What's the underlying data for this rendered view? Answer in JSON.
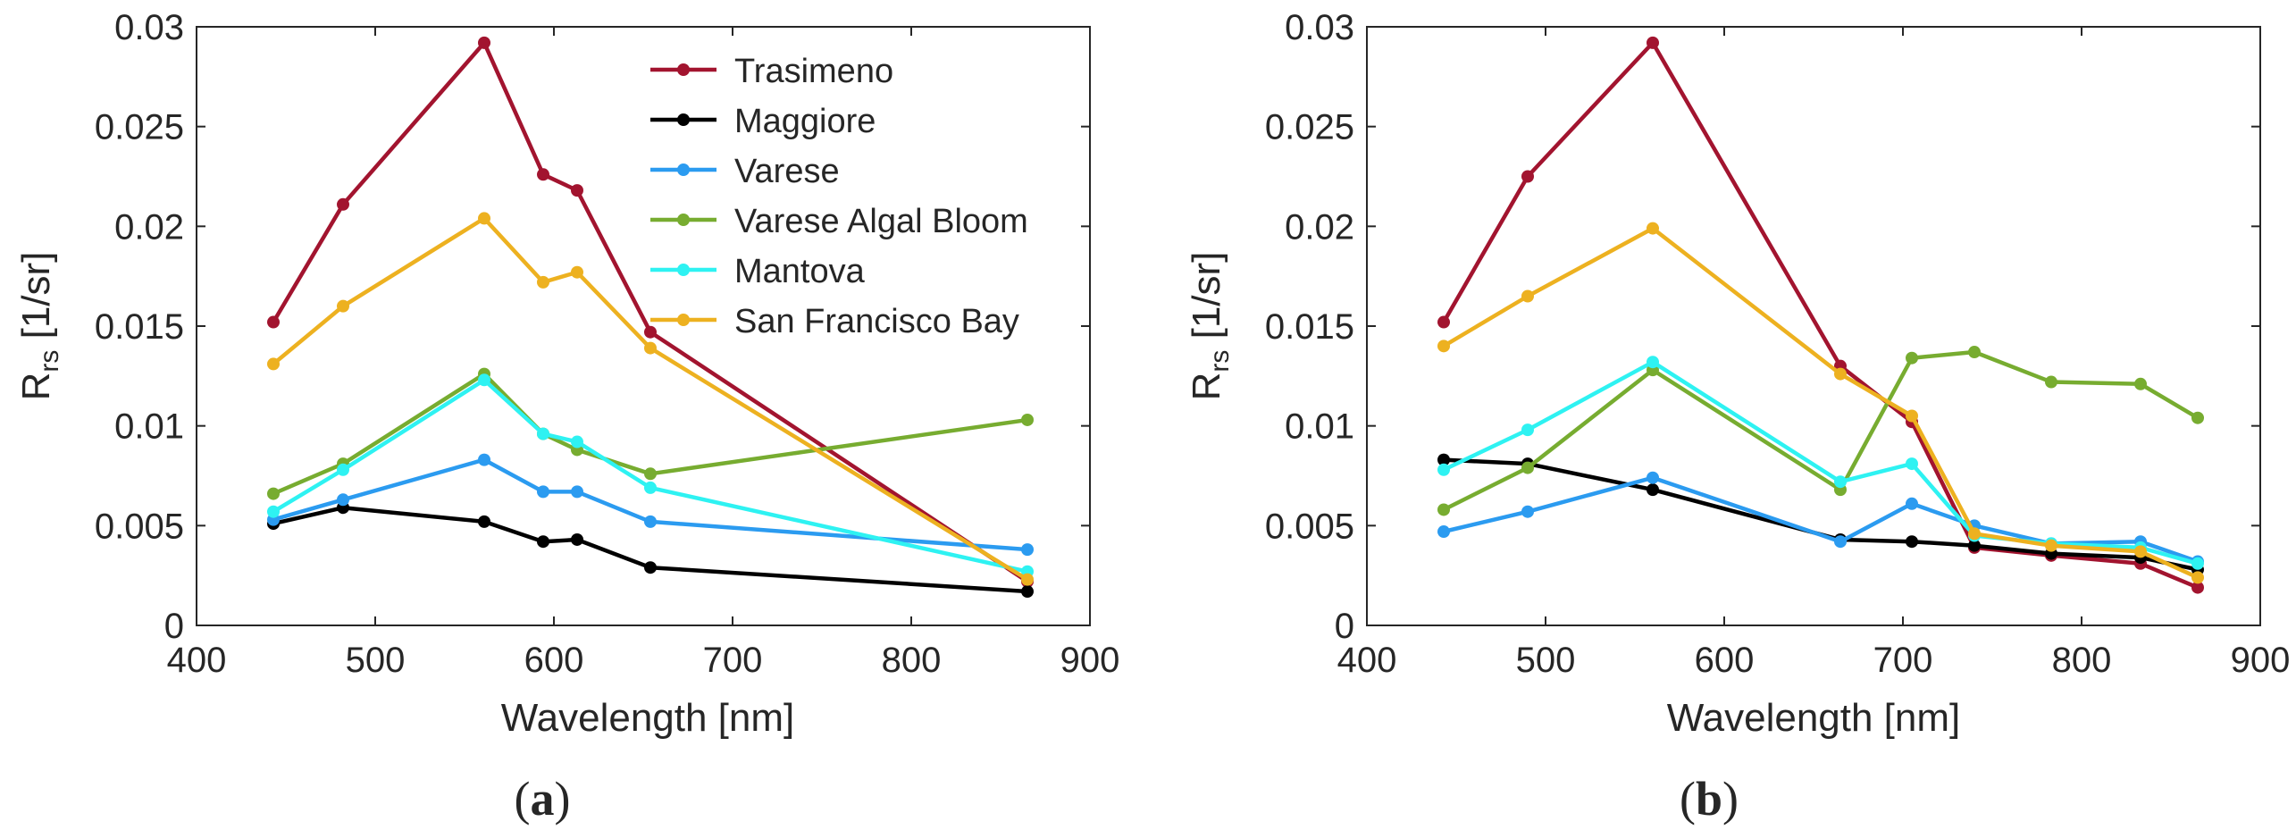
{
  "panels": [
    {
      "caption_open": "(",
      "caption_letter": "a",
      "caption_close": ")"
    },
    {
      "caption_open": "(",
      "caption_letter": "b",
      "caption_close": ")"
    }
  ],
  "chart_data": [
    {
      "type": "line",
      "title": "",
      "xlabel": "Wavelength [nm]",
      "ylabel_main": "R",
      "ylabel_sub": "rs",
      "ylabel_unit": " [1/sr]",
      "xlim": [
        400,
        900
      ],
      "ylim": [
        0,
        0.03
      ],
      "xticks": [
        400,
        500,
        600,
        700,
        800,
        900
      ],
      "yticks": [
        0,
        0.005,
        0.01,
        0.015,
        0.02,
        0.025,
        0.03
      ],
      "ytick_labels": [
        "0",
        "0.005",
        "0.01",
        "0.015",
        "0.02",
        "0.025",
        "0.03"
      ],
      "grid": false,
      "legend": "top-right",
      "series": [
        {
          "name": "Trasimeno",
          "color": "#A2142F",
          "x": [
            443,
            482,
            561,
            594,
            613,
            654,
            865
          ],
          "values": [
            0.0152,
            0.0211,
            0.0292,
            0.0226,
            0.0218,
            0.0147,
            0.0022
          ]
        },
        {
          "name": "Maggiore",
          "color": "#000000",
          "x": [
            443,
            482,
            561,
            594,
            613,
            654,
            865
          ],
          "values": [
            0.0051,
            0.0059,
            0.0052,
            0.0042,
            0.0043,
            0.0029,
            0.0017
          ]
        },
        {
          "name": "Varese",
          "color": "#2B9BF0",
          "x": [
            443,
            482,
            561,
            594,
            613,
            654,
            865
          ],
          "values": [
            0.0053,
            0.0063,
            0.0083,
            0.0067,
            0.0067,
            0.0052,
            0.0038
          ]
        },
        {
          "name": "Varese Algal Bloom",
          "color": "#77AC30",
          "x": [
            443,
            482,
            561,
            594,
            613,
            654,
            865
          ],
          "values": [
            0.0066,
            0.0081,
            0.0126,
            0.0096,
            0.0088,
            0.0076,
            0.0103
          ]
        },
        {
          "name": "Mantova",
          "color": "#2EF2F2",
          "x": [
            443,
            482,
            561,
            594,
            613,
            654,
            865
          ],
          "values": [
            0.0057,
            0.0078,
            0.0123,
            0.0096,
            0.0092,
            0.0069,
            0.0027
          ]
        },
        {
          "name": "San Francisco Bay",
          "color": "#EDB120",
          "x": [
            443,
            482,
            561,
            594,
            613,
            654,
            865
          ],
          "values": [
            0.0131,
            0.016,
            0.0204,
            0.0172,
            0.0177,
            0.0139,
            0.0023
          ]
        }
      ]
    },
    {
      "type": "line",
      "title": "",
      "xlabel": "Wavelength [nm]",
      "ylabel_main": "R",
      "ylabel_sub": "rs",
      "ylabel_unit": " [1/sr]",
      "xlim": [
        400,
        900
      ],
      "ylim": [
        0,
        0.03
      ],
      "xticks": [
        400,
        500,
        600,
        700,
        800,
        900
      ],
      "yticks": [
        0,
        0.005,
        0.01,
        0.015,
        0.02,
        0.025,
        0.03
      ],
      "ytick_labels": [
        "0",
        "0.005",
        "0.01",
        "0.015",
        "0.02",
        "0.025",
        "0.03"
      ],
      "grid": false,
      "series": [
        {
          "name": "Trasimeno",
          "color": "#A2142F",
          "x": [
            443,
            490,
            560,
            665,
            705,
            740,
            783,
            833,
            865
          ],
          "values": [
            0.0152,
            0.0225,
            0.0292,
            0.013,
            0.0102,
            0.0039,
            0.0035,
            0.0031,
            0.0019
          ]
        },
        {
          "name": "Maggiore",
          "color": "#000000",
          "x": [
            443,
            490,
            560,
            665,
            705,
            740,
            783,
            833,
            865
          ],
          "values": [
            0.0083,
            0.0081,
            0.0068,
            0.0043,
            0.0042,
            0.004,
            0.0036,
            0.0034,
            0.0028
          ]
        },
        {
          "name": "Varese",
          "color": "#2B9BF0",
          "x": [
            443,
            490,
            560,
            665,
            705,
            740,
            783,
            833,
            865
          ],
          "values": [
            0.0047,
            0.0057,
            0.0074,
            0.0042,
            0.0061,
            0.005,
            0.0041,
            0.0042,
            0.0032
          ]
        },
        {
          "name": "Varese Algal Bloom",
          "color": "#77AC30",
          "x": [
            443,
            490,
            560,
            665,
            705,
            740,
            783,
            833,
            865
          ],
          "values": [
            0.0058,
            0.0079,
            0.0128,
            0.0068,
            0.0134,
            0.0137,
            0.0122,
            0.0121,
            0.0104
          ]
        },
        {
          "name": "Mantova",
          "color": "#2EF2F2",
          "x": [
            443,
            490,
            560,
            665,
            705,
            740,
            783,
            833,
            865
          ],
          "values": [
            0.0078,
            0.0098,
            0.0132,
            0.0072,
            0.0081,
            0.0045,
            0.0041,
            0.0039,
            0.0031
          ]
        },
        {
          "name": "San Francisco Bay",
          "color": "#EDB120",
          "x": [
            443,
            490,
            560,
            665,
            705,
            740,
            783,
            833,
            865
          ],
          "values": [
            0.014,
            0.0165,
            0.0199,
            0.0126,
            0.0105,
            0.0046,
            0.004,
            0.0037,
            0.0024
          ]
        }
      ]
    }
  ]
}
